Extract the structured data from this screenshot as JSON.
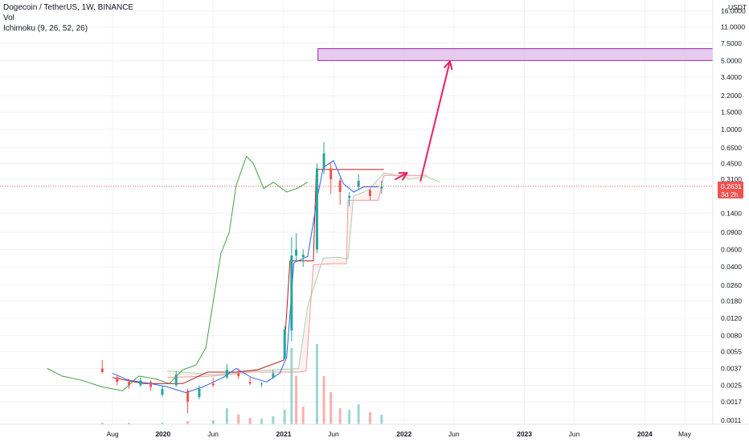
{
  "legend": {
    "title": "Dogecoin / TetherUS, 1W, BINANCE",
    "vol": "Vol",
    "ichimoku": "Ichimoku (9, 26, 52, 26)"
  },
  "colors": {
    "candle_up": "#26a69a",
    "candle_down": "#ef5350",
    "conversion": "#2962ff",
    "base": "#b71c1c",
    "lagging": "#43a047",
    "leading_a": "#a5d6a7",
    "leading_b": "#ef9a9a",
    "annotation": "#e91e63",
    "target_zone_fill": "#e1bee7",
    "target_zone_border": "#9c27b0",
    "price_tag": "#ef5350"
  },
  "chart_data": {
    "type": "candlestick",
    "symbol": "Dogecoin / TetherUS",
    "interval": "1W",
    "exchange": "BINANCE",
    "y_scale": "log",
    "y_axis_unit": "USDT",
    "y_ticks": [
      "16.0000",
      "11.0000",
      "7.5000",
      "5.0000",
      "3.4000",
      "2.2000",
      "1.5000",
      "1.0000",
      "0.6500",
      "0.4500",
      "0.3100",
      "0.1400",
      "0.0900",
      "0.0600",
      "0.0400",
      "0.0260",
      "0.0180",
      "0.0120",
      "0.0080",
      "0.0055",
      "0.0037",
      "0.0025",
      "0.0017",
      "0.0011"
    ],
    "y_tick_values": [
      16,
      11,
      7.5,
      5,
      3.4,
      2.2,
      1.5,
      1.0,
      0.65,
      0.45,
      0.31,
      0.14,
      0.09,
      0.06,
      0.04,
      0.026,
      0.018,
      0.012,
      0.008,
      0.0055,
      0.0037,
      0.0025,
      0.0017,
      0.0011
    ],
    "x_ticks": [
      {
        "label": "Aug",
        "date": "2019-08-01",
        "bold": false
      },
      {
        "label": "2020",
        "date": "2020-01-01",
        "bold": true
      },
      {
        "label": "Jun",
        "date": "2020-06-01",
        "bold": false
      },
      {
        "label": "2021",
        "date": "2021-01-01",
        "bold": true
      },
      {
        "label": "Jun",
        "date": "2021-06-01",
        "bold": false
      },
      {
        "label": "2022",
        "date": "2022-01-01",
        "bold": true
      },
      {
        "label": "Jun",
        "date": "2022-06-01",
        "bold": false
      },
      {
        "label": "2023",
        "date": "2023-01-01",
        "bold": true
      },
      {
        "label": "Jun",
        "date": "2023-06-01",
        "bold": false
      },
      {
        "label": "2024",
        "date": "2024-01-01",
        "bold": true
      },
      {
        "label": "May",
        "date": "2024-05-01",
        "bold": false
      }
    ],
    "last_price": {
      "label": "0.2631",
      "value": 0.2631,
      "countdown": "3d 2h"
    },
    "target_zone": {
      "low": 5.0,
      "high": 6.6,
      "start": "2021-04-15"
    },
    "arrow_short": {
      "from_date": "2021-12-06",
      "from_value": 0.31,
      "to_date": "2022-01-10",
      "to_value": 0.36
    },
    "arrow_long": {
      "from_date": "2022-02-20",
      "from_value": 0.3,
      "to_date": "2022-05-20",
      "to_value": 4.9
    },
    "candles": [
      {
        "date": "2019-07-01",
        "o": 0.0037,
        "h": 0.0045,
        "l": 0.0033,
        "c": 0.0034
      },
      {
        "date": "2019-08-15",
        "o": 0.003,
        "h": 0.0032,
        "l": 0.0025,
        "c": 0.0027
      },
      {
        "date": "2019-09-20",
        "o": 0.0027,
        "h": 0.0029,
        "l": 0.0023,
        "c": 0.0025
      },
      {
        "date": "2019-10-25",
        "o": 0.0025,
        "h": 0.003,
        "l": 0.0024,
        "c": 0.0028
      },
      {
        "date": "2019-11-25",
        "o": 0.0027,
        "h": 0.0028,
        "l": 0.0022,
        "c": 0.0024
      },
      {
        "date": "2019-12-30",
        "o": 0.002,
        "h": 0.0025,
        "l": 0.0019,
        "c": 0.0023
      },
      {
        "date": "2020-02-10",
        "o": 0.0025,
        "h": 0.0035,
        "l": 0.0024,
        "c": 0.0032
      },
      {
        "date": "2020-03-16",
        "o": 0.0022,
        "h": 0.0023,
        "l": 0.0013,
        "c": 0.0017
      },
      {
        "date": "2020-04-20",
        "o": 0.0019,
        "h": 0.0025,
        "l": 0.0018,
        "c": 0.0023
      },
      {
        "date": "2020-06-01",
        "o": 0.0026,
        "h": 0.003,
        "l": 0.0024,
        "c": 0.0025
      },
      {
        "date": "2020-07-13",
        "o": 0.003,
        "h": 0.0041,
        "l": 0.0029,
        "c": 0.0036
      },
      {
        "date": "2020-08-17",
        "o": 0.0033,
        "h": 0.0037,
        "l": 0.0029,
        "c": 0.0031
      },
      {
        "date": "2020-09-21",
        "o": 0.0027,
        "h": 0.003,
        "l": 0.0025,
        "c": 0.0026
      },
      {
        "date": "2020-10-26",
        "o": 0.0026,
        "h": 0.0027,
        "l": 0.0024,
        "c": 0.0026
      },
      {
        "date": "2020-11-30",
        "o": 0.003,
        "h": 0.0036,
        "l": 0.0029,
        "c": 0.0033
      },
      {
        "date": "2021-01-04",
        "o": 0.0047,
        "h": 0.01,
        "l": 0.0046,
        "c": 0.0092
      },
      {
        "date": "2021-01-25",
        "o": 0.009,
        "h": 0.08,
        "l": 0.007,
        "c": 0.052
      },
      {
        "date": "2021-02-08",
        "o": 0.052,
        "h": 0.088,
        "l": 0.045,
        "c": 0.06
      },
      {
        "date": "2021-03-01",
        "o": 0.05,
        "h": 0.06,
        "l": 0.04,
        "c": 0.053
      },
      {
        "date": "2021-04-12",
        "o": 0.06,
        "h": 0.45,
        "l": 0.055,
        "c": 0.4
      },
      {
        "date": "2021-05-03",
        "o": 0.4,
        "h": 0.74,
        "l": 0.35,
        "c": 0.57
      },
      {
        "date": "2021-05-24",
        "o": 0.4,
        "h": 0.45,
        "l": 0.22,
        "c": 0.31
      },
      {
        "date": "2021-06-21",
        "o": 0.3,
        "h": 0.32,
        "l": 0.17,
        "c": 0.23
      },
      {
        "date": "2021-07-19",
        "o": 0.2,
        "h": 0.23,
        "l": 0.165,
        "c": 0.21
      },
      {
        "date": "2021-08-16",
        "o": 0.26,
        "h": 0.35,
        "l": 0.24,
        "c": 0.3
      },
      {
        "date": "2021-09-20",
        "o": 0.24,
        "h": 0.25,
        "l": 0.19,
        "c": 0.21
      },
      {
        "date": "2021-10-25",
        "o": 0.25,
        "h": 0.3,
        "l": 0.22,
        "c": 0.2631
      }
    ],
    "volume": [
      {
        "date": "2019-07-01",
        "v": 2,
        "up": false
      },
      {
        "date": "2019-09-20",
        "v": 2,
        "up": true
      },
      {
        "date": "2019-12-30",
        "v": 2,
        "up": true
      },
      {
        "date": "2020-03-16",
        "v": 4,
        "up": false
      },
      {
        "date": "2020-06-01",
        "v": 5,
        "up": true
      },
      {
        "date": "2020-07-13",
        "v": 20,
        "up": true
      },
      {
        "date": "2020-08-17",
        "v": 12,
        "up": false
      },
      {
        "date": "2020-09-21",
        "v": 8,
        "up": false
      },
      {
        "date": "2020-10-26",
        "v": 7,
        "up": true
      },
      {
        "date": "2020-11-30",
        "v": 10,
        "up": true
      },
      {
        "date": "2021-01-04",
        "v": 18,
        "up": true
      },
      {
        "date": "2021-01-25",
        "v": 95,
        "up": true
      },
      {
        "date": "2021-02-08",
        "v": 60,
        "up": false
      },
      {
        "date": "2021-03-01",
        "v": 22,
        "up": false
      },
      {
        "date": "2021-04-12",
        "v": 100,
        "up": true
      },
      {
        "date": "2021-05-03",
        "v": 60,
        "up": false
      },
      {
        "date": "2021-05-24",
        "v": 40,
        "up": false
      },
      {
        "date": "2021-06-21",
        "v": 20,
        "up": false
      },
      {
        "date": "2021-07-19",
        "v": 18,
        "up": true
      },
      {
        "date": "2021-08-16",
        "v": 25,
        "up": true
      },
      {
        "date": "2021-09-20",
        "v": 15,
        "up": false
      },
      {
        "date": "2021-10-25",
        "v": 12,
        "up": true
      }
    ],
    "ichimoku": {
      "conversion": [
        [
          "2019-08-01",
          0.0033
        ],
        [
          "2019-09-20",
          0.0028
        ],
        [
          "2019-11-25",
          0.0026
        ],
        [
          "2020-01-15",
          0.0024
        ],
        [
          "2020-03-10",
          0.0021
        ],
        [
          "2020-05-01",
          0.0024
        ],
        [
          "2020-07-01",
          0.003
        ],
        [
          "2020-08-10",
          0.0037
        ],
        [
          "2020-09-25",
          0.003
        ],
        [
          "2020-11-10",
          0.0027
        ],
        [
          "2020-12-20",
          0.0033
        ],
        [
          "2021-01-10",
          0.0048
        ],
        [
          "2021-02-01",
          0.044
        ],
        [
          "2021-03-15",
          0.051
        ],
        [
          "2021-04-15",
          0.22
        ],
        [
          "2021-05-01",
          0.41
        ],
        [
          "2021-06-01",
          0.48
        ],
        [
          "2021-07-01",
          0.28
        ],
        [
          "2021-08-01",
          0.23
        ],
        [
          "2021-09-01",
          0.26
        ],
        [
          "2021-10-15",
          0.26
        ]
      ],
      "base": [
        [
          "2019-08-01",
          0.003
        ],
        [
          "2019-11-01",
          0.0026
        ],
        [
          "2020-03-01",
          0.0026
        ],
        [
          "2020-05-15",
          0.0034
        ],
        [
          "2020-08-10",
          0.0034
        ],
        [
          "2020-10-15",
          0.0036
        ],
        [
          "2021-01-01",
          0.0045
        ],
        [
          "2021-01-20",
          0.046
        ],
        [
          "2021-04-01",
          0.046
        ],
        [
          "2021-04-10",
          0.39
        ],
        [
          "2021-06-15",
          0.39
        ],
        [
          "2021-09-10",
          0.39
        ],
        [
          "2021-10-15",
          0.39
        ],
        [
          "2021-11-01",
          0.39
        ]
      ],
      "lagging": [
        [
          "2019-01-15",
          0.0037
        ],
        [
          "2019-03-01",
          0.0031
        ],
        [
          "2019-05-01",
          0.0028
        ],
        [
          "2019-07-01",
          0.0024
        ],
        [
          "2019-09-01",
          0.0022
        ],
        [
          "2019-10-20",
          0.0031
        ],
        [
          "2019-12-10",
          0.0029
        ],
        [
          "2020-01-20",
          0.0026
        ],
        [
          "2020-03-01",
          0.0036
        ],
        [
          "2020-04-10",
          0.004
        ],
        [
          "2020-05-10",
          0.006
        ],
        [
          "2020-06-25",
          0.055
        ],
        [
          "2020-07-20",
          0.09
        ],
        [
          "2020-08-10",
          0.27
        ],
        [
          "2020-09-10",
          0.53
        ],
        [
          "2020-10-01",
          0.45
        ],
        [
          "2020-11-01",
          0.25
        ],
        [
          "2020-12-01",
          0.29
        ],
        [
          "2021-01-10",
          0.23
        ],
        [
          "2021-02-10",
          0.25
        ],
        [
          "2021-03-15",
          0.29
        ]
      ],
      "leading_a": [
        [
          "2020-01-15",
          0.0035
        ],
        [
          "2020-06-01",
          0.0032
        ],
        [
          "2020-10-01",
          0.0035
        ],
        [
          "2021-02-15",
          0.0037
        ],
        [
          "2021-03-15",
          0.016
        ],
        [
          "2021-05-01",
          0.049
        ],
        [
          "2021-06-15",
          0.05
        ],
        [
          "2021-07-15",
          0.048
        ],
        [
          "2021-08-01",
          0.21
        ],
        [
          "2021-09-15",
          0.24
        ],
        [
          "2021-11-01",
          0.36
        ],
        [
          "2021-12-15",
          0.34
        ],
        [
          "2022-01-20",
          0.31
        ],
        [
          "2022-03-10",
          0.33
        ],
        [
          "2022-04-20",
          0.29
        ]
      ],
      "leading_b": [
        [
          "2020-01-15",
          0.003
        ],
        [
          "2020-06-01",
          0.0031
        ],
        [
          "2020-10-01",
          0.0034
        ],
        [
          "2021-02-15",
          0.0034
        ],
        [
          "2021-03-10",
          0.0035
        ],
        [
          "2021-04-01",
          0.042
        ],
        [
          "2021-06-01",
          0.043
        ],
        [
          "2021-07-10",
          0.043
        ],
        [
          "2021-07-15",
          0.19
        ],
        [
          "2021-09-15",
          0.19
        ],
        [
          "2021-10-15",
          0.19
        ],
        [
          "2021-11-01",
          0.34
        ],
        [
          "2022-03-10",
          0.34
        ]
      ]
    }
  }
}
